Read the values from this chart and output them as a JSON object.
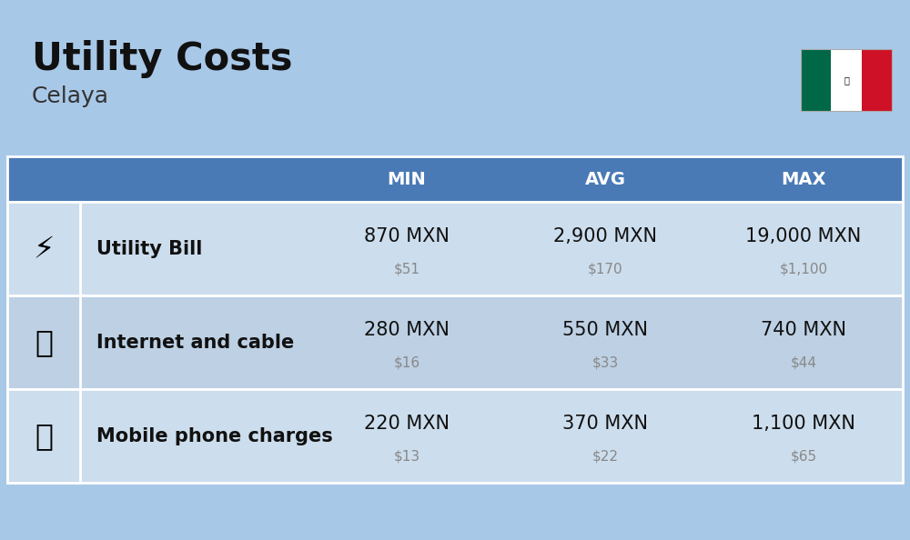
{
  "title": "Utility Costs",
  "subtitle": "Celaya",
  "background_color": "#a8c8e8",
  "header_color": "#4a7ab5",
  "header_text_color": "#ffffff",
  "row_color_odd": "#ccdded",
  "row_color_even": "#bdd0e4",
  "col_headers": [
    "MIN",
    "AVG",
    "MAX"
  ],
  "rows": [
    {
      "label": "Utility Bill",
      "min_mxn": "870 MXN",
      "min_usd": "$51",
      "avg_mxn": "2,900 MXN",
      "avg_usd": "$170",
      "max_mxn": "19,000 MXN",
      "max_usd": "$1,100"
    },
    {
      "label": "Internet and cable",
      "min_mxn": "280 MXN",
      "min_usd": "$16",
      "avg_mxn": "550 MXN",
      "avg_usd": "$33",
      "max_mxn": "740 MXN",
      "max_usd": "$44"
    },
    {
      "label": "Mobile phone charges",
      "min_mxn": "220 MXN",
      "min_usd": "$13",
      "avg_mxn": "370 MXN",
      "avg_usd": "$22",
      "max_mxn": "1,100 MXN",
      "max_usd": "$65"
    }
  ],
  "title_fontsize": 30,
  "subtitle_fontsize": 18,
  "header_fontsize": 14,
  "cell_mxn_fontsize": 15,
  "cell_usd_fontsize": 11,
  "label_fontsize": 15,
  "usd_color": "#888888",
  "label_color": "#111111",
  "mxn_color": "#111111",
  "flag_colors": [
    "#006847",
    "#ffffff",
    "#ce1126"
  ]
}
